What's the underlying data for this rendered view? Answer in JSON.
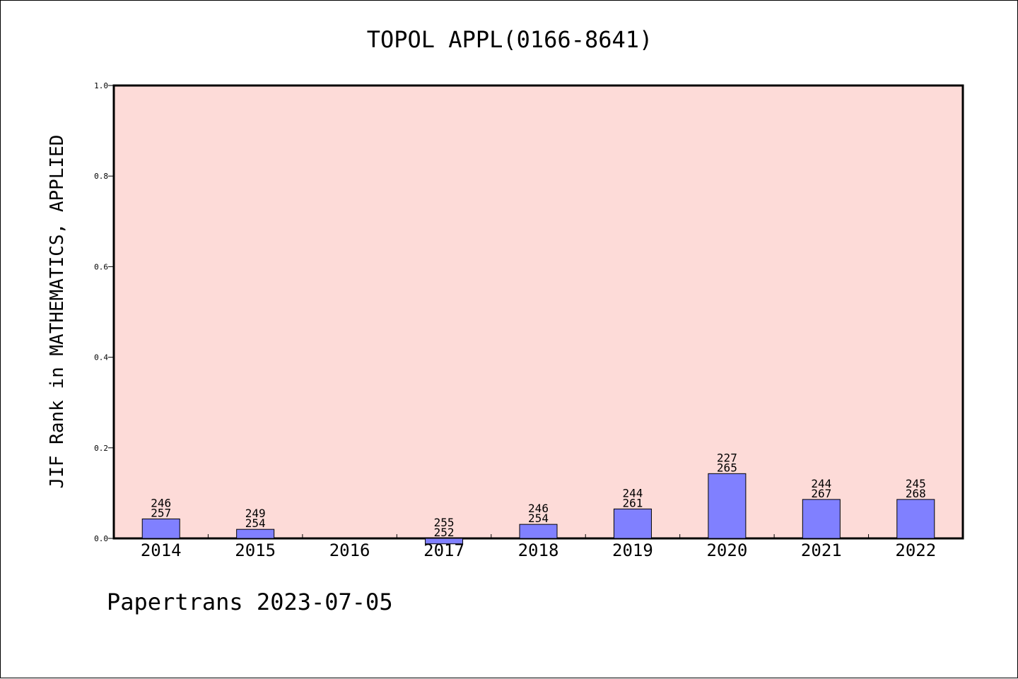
{
  "footer": "Papertrans 2023-07-05",
  "chart_data": {
    "type": "bar",
    "title": "TOPOL APPL(0166-8641)",
    "xlabel": "",
    "ylabel": "JIF Rank in MATHEMATICS, APPLIED",
    "ylim": [
      0,
      1.0
    ],
    "yticks": [
      0.0,
      0.2,
      0.4,
      0.6,
      0.8,
      1.0
    ],
    "ytick_labels": [
      "0.0",
      "0.2",
      "0.4",
      "0.6",
      "0.8",
      "1.0"
    ],
    "categories": [
      "2014",
      "2015",
      "2016",
      "2017",
      "2018",
      "2019",
      "2020",
      "2021",
      "2022"
    ],
    "values": [
      0.043,
      0.02,
      null,
      -0.012,
      0.031,
      0.065,
      0.143,
      0.086,
      0.086
    ],
    "bar_labels": [
      [
        "246",
        "257"
      ],
      [
        "249",
        "254"
      ],
      null,
      [
        "255",
        "252"
      ],
      [
        "246",
        "254"
      ],
      [
        "244",
        "261"
      ],
      [
        "227",
        "265"
      ],
      [
        "244",
        "267"
      ],
      [
        "245",
        "268"
      ]
    ],
    "grid": false,
    "colors": {
      "plot_background": "#fddbd8",
      "bar_fill": "#8080ff",
      "bar_edge": "#000000"
    }
  }
}
